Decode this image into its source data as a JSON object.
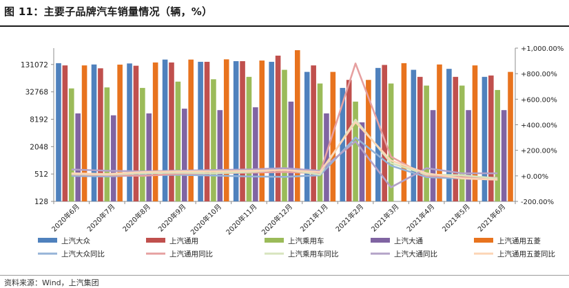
{
  "figure": {
    "title": "图 11：主要子品牌汽车销量情况（辆，%）",
    "source": "资料来源：Wind，上汽集团"
  },
  "colors": {
    "bars": [
      "#4f81bd",
      "#c0504d",
      "#9bbb59",
      "#8064a2",
      "#e8731e"
    ],
    "lines": [
      "#95b3d7",
      "#e6a0a0",
      "#d7e4bd",
      "#b3a2c7",
      "#fcd5b5"
    ]
  },
  "chart_data": {
    "type": "bar",
    "categories": [
      "2020年6月",
      "2020年7月",
      "2020年8月",
      "2020年9月",
      "2020年10月",
      "2020年11月",
      "2020年12月",
      "2021年1月",
      "2021年2月",
      "2021年3月",
      "2021年4月",
      "2021年5月",
      "2021年6月"
    ],
    "left_axis": {
      "scale": "log2",
      "ticks": [
        128,
        512,
        2048,
        8192,
        32768,
        131072
      ],
      "tick_labels": [
        "128",
        "512",
        "2048",
        "8192",
        "32768",
        "131072"
      ],
      "ylim": [
        128,
        300000
      ]
    },
    "right_axis": {
      "ticks": [
        -200,
        0,
        200,
        400,
        600,
        800,
        1000
      ],
      "tick_labels": [
        "-200.00%",
        "+0.00%",
        "+200.00%",
        "+400.00%",
        "+600.00%",
        "+800.00%",
        "+1,000.00%"
      ],
      "ylim": [
        -200,
        1000
      ]
    },
    "bar_series": [
      {
        "name": "上汽大众",
        "values": [
          140000,
          131000,
          138000,
          168000,
          150000,
          155000,
          150000,
          90000,
          40000,
          110000,
          100000,
          105000,
          70000
        ]
      },
      {
        "name": "上汽通用",
        "values": [
          125000,
          108000,
          123000,
          145000,
          150000,
          155000,
          205000,
          125000,
          60000,
          128000,
          70000,
          70000,
          75000
        ]
      },
      {
        "name": "上汽乘用车",
        "values": [
          39000,
          41000,
          40000,
          55000,
          62000,
          70000,
          100000,
          50000,
          20000,
          50000,
          45000,
          45000,
          36000
        ]
      },
      {
        "name": "上汽大通",
        "values": [
          11000,
          10000,
          11000,
          14000,
          13000,
          15000,
          20000,
          11000,
          7000,
          0,
          13000,
          13000,
          13000
        ]
      },
      {
        "name": "上汽通用五菱",
        "values": [
          125000,
          130000,
          145000,
          168000,
          170000,
          160000,
          270000,
          90000,
          60000,
          140000,
          131000,
          125000,
          90000
        ]
      }
    ],
    "line_series": [
      {
        "name": "上汽大众同比",
        "values": [
          0,
          -5,
          5,
          8,
          3,
          -5,
          -8,
          5,
          300,
          80,
          -10,
          -20,
          -30
        ]
      },
      {
        "name": "上汽通用同比",
        "values": [
          10,
          5,
          0,
          15,
          20,
          25,
          30,
          20,
          880,
          150,
          0,
          -10,
          -15
        ]
      },
      {
        "name": "上汽乘用车同比",
        "values": [
          15,
          10,
          20,
          25,
          20,
          30,
          50,
          10,
          440,
          100,
          10,
          5,
          -20
        ]
      },
      {
        "name": "上汽大通同比",
        "values": [
          50,
          40,
          35,
          40,
          45,
          50,
          60,
          40,
          270,
          -90,
          60,
          20,
          20
        ]
      },
      {
        "name": "上汽通用五菱同比",
        "values": [
          20,
          15,
          30,
          35,
          35,
          40,
          45,
          30,
          420,
          120,
          20,
          -20,
          -30
        ]
      }
    ]
  }
}
